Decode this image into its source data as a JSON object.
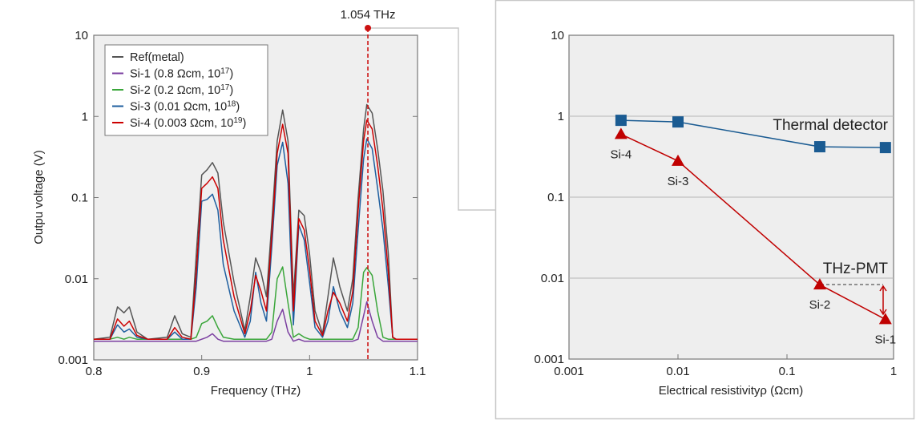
{
  "chart_data": [
    {
      "type": "line",
      "xlabel": "Frequency (THz)",
      "ylabel": "Outpu voltage (V)",
      "xlim": [
        0.8,
        1.1
      ],
      "ylim": [
        0.001,
        10
      ],
      "yscale": "log",
      "grid": false,
      "legend_position": "top-left",
      "x_ticks": [
        "0.8",
        "0.9",
        "1",
        "1.1"
      ],
      "y_ticks": [
        "10",
        "1",
        "0.1",
        "0.01",
        "0.001"
      ],
      "annotation": {
        "label": "1.054 THz",
        "x": 1.054,
        "color": "#cc1111"
      },
      "x": [
        0.8,
        0.815,
        0.822,
        0.828,
        0.833,
        0.84,
        0.85,
        0.868,
        0.875,
        0.882,
        0.89,
        0.895,
        0.9,
        0.905,
        0.91,
        0.915,
        0.92,
        0.93,
        0.94,
        0.945,
        0.95,
        0.955,
        0.96,
        0.965,
        0.97,
        0.975,
        0.98,
        0.985,
        0.99,
        0.995,
        1.0,
        1.005,
        1.012,
        1.017,
        1.022,
        1.028,
        1.035,
        1.04,
        1.045,
        1.05,
        1.053,
        1.058,
        1.063,
        1.068,
        1.073,
        1.077,
        1.08,
        1.09,
        1.1
      ],
      "series": [
        {
          "name": "Ref(metal)",
          "color": "#555555",
          "values": [
            0.0018,
            0.0019,
            0.0045,
            0.0038,
            0.0045,
            0.0022,
            0.0018,
            0.0019,
            0.0035,
            0.0021,
            0.0019,
            0.02,
            0.19,
            0.22,
            0.27,
            0.2,
            0.05,
            0.009,
            0.0023,
            0.006,
            0.018,
            0.012,
            0.006,
            0.05,
            0.5,
            1.2,
            0.5,
            0.006,
            0.07,
            0.06,
            0.02,
            0.004,
            0.0021,
            0.006,
            0.018,
            0.008,
            0.004,
            0.01,
            0.1,
            0.7,
            1.4,
            1.1,
            0.4,
            0.12,
            0.02,
            0.0019,
            0.0018,
            0.0018,
            0.0018
          ]
        },
        {
          "name": "Si-1 (0.8 Ωcm, 10",
          "sup": "17",
          "color": "#7b3fa0",
          "values": [
            0.0017,
            0.0017,
            0.0017,
            0.0017,
            0.0017,
            0.0017,
            0.0017,
            0.0017,
            0.0017,
            0.0017,
            0.0017,
            0.0017,
            0.0018,
            0.0019,
            0.0021,
            0.0018,
            0.0017,
            0.0017,
            0.0017,
            0.0017,
            0.0017,
            0.0017,
            0.0017,
            0.0018,
            0.003,
            0.0042,
            0.0022,
            0.0017,
            0.0018,
            0.0017,
            0.0017,
            0.0017,
            0.0017,
            0.0017,
            0.0017,
            0.0017,
            0.0017,
            0.0017,
            0.0018,
            0.0035,
            0.0052,
            0.003,
            0.0019,
            0.0017,
            0.0017,
            0.0017,
            0.0017,
            0.0017,
            0.0017
          ]
        },
        {
          "name": "Si-2 (0.2 Ωcm, 10",
          "sup": "17",
          "color": "#3aa63a",
          "values": [
            0.0018,
            0.0018,
            0.0019,
            0.0018,
            0.0019,
            0.0018,
            0.0018,
            0.0018,
            0.0018,
            0.0018,
            0.0018,
            0.0019,
            0.0028,
            0.003,
            0.0035,
            0.0025,
            0.0019,
            0.0018,
            0.0018,
            0.0018,
            0.0018,
            0.0018,
            0.0018,
            0.0022,
            0.01,
            0.014,
            0.005,
            0.0019,
            0.0021,
            0.0019,
            0.0018,
            0.0018,
            0.0018,
            0.0018,
            0.0018,
            0.0018,
            0.0018,
            0.0018,
            0.0025,
            0.012,
            0.0137,
            0.011,
            0.004,
            0.0019,
            0.0018,
            0.0018,
            0.0018,
            0.0018,
            0.0018
          ]
        },
        {
          "name": "Si-3 (0.01 Ωcm, 10",
          "sup": "18",
          "color": "#1f5f9f",
          "values": [
            0.0018,
            0.0018,
            0.0027,
            0.0022,
            0.0024,
            0.0019,
            0.0018,
            0.0018,
            0.0022,
            0.0018,
            0.0018,
            0.008,
            0.09,
            0.095,
            0.11,
            0.07,
            0.015,
            0.004,
            0.0019,
            0.003,
            0.012,
            0.005,
            0.003,
            0.025,
            0.25,
            0.48,
            0.15,
            0.0027,
            0.046,
            0.03,
            0.009,
            0.0025,
            0.0019,
            0.003,
            0.008,
            0.004,
            0.0025,
            0.005,
            0.04,
            0.3,
            0.53,
            0.4,
            0.13,
            0.04,
            0.008,
            0.0019,
            0.0018,
            0.0018,
            0.0018
          ]
        },
        {
          "name": "Si-4 (0.003 Ωcm, 10",
          "sup": "19",
          "color": "#cc0000",
          "values": [
            0.0018,
            0.0018,
            0.0032,
            0.0026,
            0.003,
            0.002,
            0.0018,
            0.0018,
            0.0025,
            0.0019,
            0.0018,
            0.012,
            0.13,
            0.15,
            0.18,
            0.13,
            0.03,
            0.006,
            0.0021,
            0.004,
            0.011,
            0.007,
            0.004,
            0.035,
            0.35,
            0.8,
            0.35,
            0.004,
            0.055,
            0.04,
            0.013,
            0.003,
            0.002,
            0.004,
            0.0068,
            0.005,
            0.003,
            0.007,
            0.07,
            0.5,
            0.9,
            0.7,
            0.25,
            0.07,
            0.012,
            0.0019,
            0.0018,
            0.0018,
            0.0018
          ]
        }
      ]
    },
    {
      "type": "line",
      "xlabel": "Electrical resistivityρ (Ωcm)",
      "ylabel": "",
      "xlim": [
        0.001,
        1
      ],
      "ylim": [
        0.001,
        10
      ],
      "xscale": "log",
      "yscale": "log",
      "grid": true,
      "x_ticks": [
        "0.001",
        "0.01",
        "0.1",
        "1"
      ],
      "y_ticks": [
        "10",
        "1",
        "0.1",
        "0.01",
        "0.001"
      ],
      "series": [
        {
          "name": "Thermal detector",
          "color": "#1a5b92",
          "marker": "square",
          "x": [
            0.003,
            0.01,
            0.2,
            0.8
          ],
          "values": [
            0.89,
            0.85,
            0.42,
            0.41
          ]
        },
        {
          "name": "THz-PMT",
          "color": "#c00000",
          "marker": "triangle",
          "x": [
            0.003,
            0.01,
            0.2,
            0.8
          ],
          "values": [
            0.6,
            0.28,
            0.0083,
            0.0031
          ],
          "point_labels": [
            "Si-4",
            "Si-3",
            "Si-2",
            "Si-1"
          ]
        }
      ]
    }
  ]
}
